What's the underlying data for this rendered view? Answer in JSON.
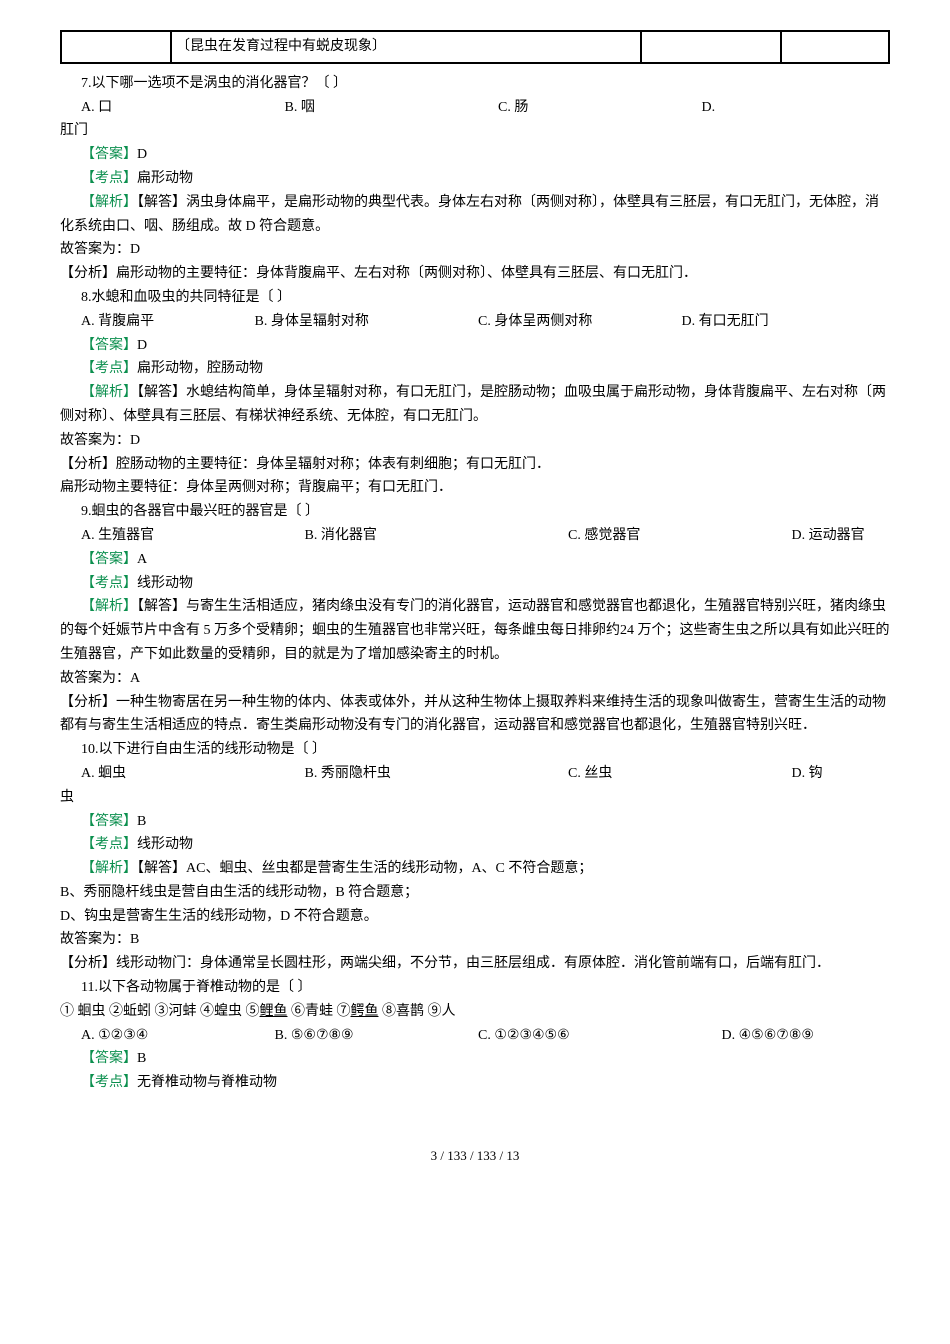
{
  "table": {
    "cell2": "〔昆虫在发育过程中有蜕皮现象〕"
  },
  "q7": {
    "stem": "7.以下哪一选项不是涡虫的消化器官？〔    〕",
    "optA": "A. 口",
    "optB": "B. 咽",
    "optC": "C. 肠",
    "optD": "D.",
    "optD_cont": "肛门",
    "answer_label": "【答案】",
    "answer": "D",
    "kaodian_label": "【考点】",
    "kaodian": "扁形动物",
    "jiexi_label": "【解析】",
    "jiexi_body": "【解答】涡虫身体扁平，是扁形动物的典型代表。身体左右对称〔两侧对称〕，体壁具有三胚层，有口无肛门，无体腔，消化系统由口、咽、肠组成。故 D 符合题意。",
    "conclusion": "故答案为：D",
    "fenxi": "【分析】扁形动物的主要特征：身体背腹扁平、左右对称〔两侧对称〕、体壁具有三胚层、有口无肛门．"
  },
  "q8": {
    "stem": "8.水螅和血吸虫的共同特征是〔    〕",
    "optA": "A. 背腹扁平",
    "optB": "B. 身体呈辐射对称",
    "optC": "C. 身体呈两侧对称",
    "optD": "D. 有口无肛门",
    "answer_label": "【答案】",
    "answer": "D",
    "kaodian_label": "【考点】",
    "kaodian": "扁形动物，腔肠动物",
    "jiexi_label": "【解析】",
    "jiexi_body": "【解答】水螅结构简单，身体呈辐射对称，有口无肛门，是腔肠动物；血吸虫属于扁形动物，身体背腹扁平、左右对称〔两侧对称〕、体壁具有三胚层、有梯状神经系统、无体腔，有口无肛门。",
    "conclusion": "故答案为：D",
    "fenxi1": "【分析】腔肠动物的主要特征：身体呈辐射对称；体表有刺细胞；有口无肛门．",
    "fenxi2": "扁形动物主要特征：身体呈两侧对称；背腹扁平；有口无肛门．"
  },
  "q9": {
    "stem": "9.蛔虫的各器官中最兴旺的器官是〔    〕",
    "optA": "A. 生殖器官",
    "optB": "B. 消化器官",
    "optC": "C. 感觉器官",
    "optD": "D. 运动器官",
    "answer_label": "【答案】",
    "answer": "A",
    "kaodian_label": "【考点】",
    "kaodian": "线形动物",
    "jiexi_label": "【解析】",
    "jiexi_body": "【解答】与寄生生活相适应，猪肉绦虫没有专门的消化器官，运动器官和感觉器官也都退化，生殖器官特别兴旺，猪肉绦虫的每个妊娠节片中含有 5 万多个受精卵；蛔虫的生殖器官也非常兴旺，每条雌虫每日排卵约24 万个；这些寄生虫之所以具有如此兴旺的生殖器官，产下如此数量的受精卵，目的就是为了增加感染寄主的时机。",
    "conclusion": "故答案为：A",
    "fenxi": "【分析】一种生物寄居在另一种生物的体内、体表或体外，并从这种生物体上摄取养料来维持生活的现象叫做寄生，营寄生生活的动物都有与寄生生活相适应的特点．寄生类扁形动物没有专门的消化器官，运动器官和感觉器官也都退化，生殖器官特别兴旺．"
  },
  "q10": {
    "stem": "10.以下进行自由生活的线形动物是〔    〕",
    "optA": "A. 蛔虫",
    "optB": "B. 秀丽隐杆虫",
    "optC": "C. 丝虫",
    "optD": "D. 钩",
    "optD_cont": "虫",
    "answer_label": "【答案】",
    "answer": "B",
    "kaodian_label": "【考点】",
    "kaodian": "线形动物",
    "jiexi_label": "【解析】",
    "jiexi_body": "【解答】AC、蛔虫、丝虫都是营寄生生活的线形动物，A、C 不符合题意；",
    "jiexi2": "B、秀丽隐杆线虫是营自由生活的线形动物，B 符合题意；",
    "jiexi3": "D、钩虫是营寄生生活的线形动物，D 不符合题意。",
    "conclusion": "故答案为：B",
    "fenxi": "【分析】线形动物门：身体通常呈长圆柱形，两端尖细，不分节，由三胚层组成．有原体腔．消化管前端有口，后端有肛门．"
  },
  "q11": {
    "stem": "11.以下各动物属于脊椎动物的是〔    〕",
    "list_a": "① 蛔虫  ②蚯蚓  ③河蚌  ④蝗虫  ⑤",
    "list_b": "鲤鱼",
    "list_c": "  ⑥青蛙  ⑦",
    "list_d": "鳄鱼",
    "list_e": "  ⑧喜鹊  ⑨人",
    "optA": "A. ①②③④",
    "optB": "B. ⑤⑥⑦⑧⑨",
    "optC": "C. ①②③④⑤⑥",
    "optD": "D. ④⑤⑥⑦⑧⑨",
    "answer_label": "【答案】",
    "answer": "B",
    "kaodian_label": "【考点】",
    "kaodian": "无脊椎动物与脊椎动物"
  },
  "footer": "3 / 133 / 133 / 13"
}
